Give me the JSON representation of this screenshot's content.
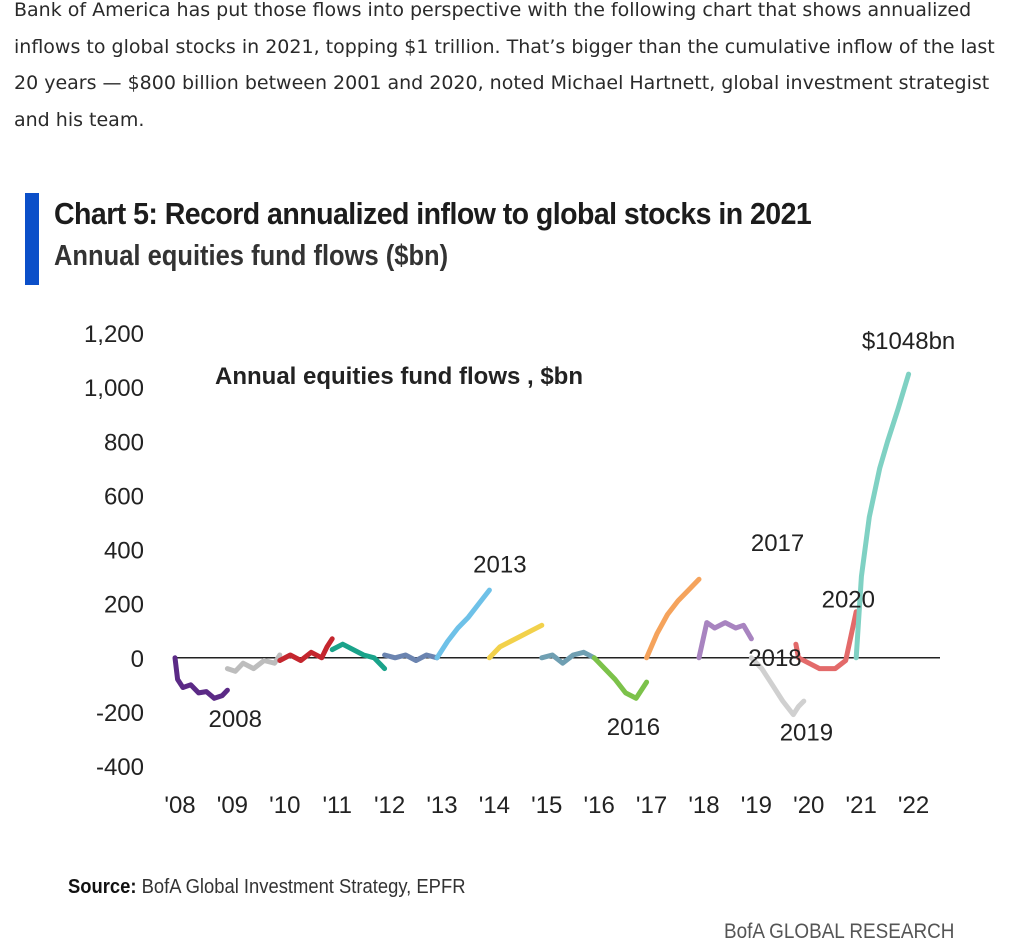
{
  "intro_text": "Bank of America has put those flows into perspective with the following chart that shows annualized inflows to global stocks in 2021, topping $1 trillion. That’s bigger than the cumulative inflow of the last 20 years — $800 billion between 2001 and 2020, noted Michael Hartnett, global investment strategist and his team.",
  "chart_header": {
    "title": "Chart 5: Record annualized inflow to global stocks in 2021",
    "subtitle": "Annual equities fund flows ($bn)",
    "accent_color": "#0b4fc9"
  },
  "source": {
    "label": "Source:",
    "text": "BofA Global Investment Strategy, EPFR"
  },
  "brand": "BofA GLOBAL RESEARCH",
  "chart_data": {
    "type": "line",
    "title": "Annual equities fund flows , $bn",
    "ylim": [
      -400,
      1200
    ],
    "yticks": [
      "1,200",
      "1,000",
      "800",
      "600",
      "400",
      "200",
      "0",
      "-200",
      "-400"
    ],
    "ytick_values": [
      1200,
      1000,
      800,
      600,
      400,
      200,
      0,
      -200,
      -400
    ],
    "xlim": [
      2008,
      2022.6
    ],
    "xticks": [
      "'08",
      "'09",
      "'10",
      "'11",
      "'12",
      "'13",
      "'14",
      "'15",
      "'16",
      "'17",
      "'18",
      "'19",
      "'20",
      "'21",
      "'22"
    ],
    "xtick_values": [
      2008,
      2009,
      2010,
      2011,
      2012,
      2013,
      2014,
      2015,
      2016,
      2017,
      2018,
      2019,
      2020,
      2021,
      2022
    ],
    "grid": false,
    "zero_line": true,
    "series": [
      {
        "color": "#5b2a86",
        "values": [
          [
            2008.0,
            0
          ],
          [
            2008.05,
            -80
          ],
          [
            2008.15,
            -110
          ],
          [
            2008.3,
            -100
          ],
          [
            2008.45,
            -130
          ],
          [
            2008.6,
            -125
          ],
          [
            2008.75,
            -150
          ],
          [
            2008.9,
            -140
          ],
          [
            2009.0,
            -120
          ]
        ]
      },
      {
        "color": "#bdbdbd",
        "values": [
          [
            2009.0,
            -40
          ],
          [
            2009.15,
            -50
          ],
          [
            2009.3,
            -20
          ],
          [
            2009.5,
            -40
          ],
          [
            2009.7,
            -10
          ],
          [
            2009.9,
            -20
          ],
          [
            2010.0,
            10
          ]
        ]
      },
      {
        "color": "#c4262e",
        "values": [
          [
            2010.0,
            -10
          ],
          [
            2010.2,
            10
          ],
          [
            2010.4,
            -10
          ],
          [
            2010.6,
            20
          ],
          [
            2010.8,
            0
          ],
          [
            2010.9,
            40
          ],
          [
            2011.0,
            70
          ]
        ]
      },
      {
        "color": "#1aa38a",
        "values": [
          [
            2011.0,
            30
          ],
          [
            2011.2,
            50
          ],
          [
            2011.4,
            30
          ],
          [
            2011.6,
            10
          ],
          [
            2011.8,
            0
          ],
          [
            2012.0,
            -40
          ]
        ]
      },
      {
        "color": "#6b84b0",
        "values": [
          [
            2012.0,
            10
          ],
          [
            2012.2,
            0
          ],
          [
            2012.4,
            10
          ],
          [
            2012.6,
            -10
          ],
          [
            2012.8,
            10
          ],
          [
            2013.0,
            0
          ]
        ]
      },
      {
        "color": "#6ec1e8",
        "values": [
          [
            2013.0,
            0
          ],
          [
            2013.2,
            60
          ],
          [
            2013.4,
            110
          ],
          [
            2013.6,
            150
          ],
          [
            2013.8,
            200
          ],
          [
            2014.0,
            250
          ]
        ]
      },
      {
        "color": "#f2d14b",
        "values": [
          [
            2014.0,
            0
          ],
          [
            2014.2,
            40
          ],
          [
            2014.4,
            60
          ],
          [
            2014.6,
            80
          ],
          [
            2014.8,
            100
          ],
          [
            2015.0,
            120
          ]
        ]
      },
      {
        "color": "#6f9fb2",
        "values": [
          [
            2015.0,
            0
          ],
          [
            2015.2,
            10
          ],
          [
            2015.4,
            -20
          ],
          [
            2015.6,
            10
          ],
          [
            2015.8,
            20
          ],
          [
            2016.0,
            0
          ]
        ]
      },
      {
        "color": "#7cc24a",
        "values": [
          [
            2016.0,
            0
          ],
          [
            2016.2,
            -40
          ],
          [
            2016.4,
            -80
          ],
          [
            2016.6,
            -130
          ],
          [
            2016.8,
            -150
          ],
          [
            2017.0,
            -90
          ]
        ]
      },
      {
        "color": "#f5a35c",
        "values": [
          [
            2017.0,
            0
          ],
          [
            2017.2,
            90
          ],
          [
            2017.4,
            160
          ],
          [
            2017.6,
            210
          ],
          [
            2017.8,
            250
          ],
          [
            2018.0,
            290
          ]
        ]
      },
      {
        "color": "#a884c0",
        "values": [
          [
            2018.0,
            0
          ],
          [
            2018.15,
            130
          ],
          [
            2018.3,
            110
          ],
          [
            2018.5,
            130
          ],
          [
            2018.7,
            110
          ],
          [
            2018.85,
            120
          ],
          [
            2019.0,
            70
          ]
        ]
      },
      {
        "color": "#d0d0d0",
        "values": [
          [
            2019.0,
            0
          ],
          [
            2019.2,
            -40
          ],
          [
            2019.4,
            -100
          ],
          [
            2019.6,
            -160
          ],
          [
            2019.8,
            -210
          ],
          [
            2019.9,
            -180
          ],
          [
            2020.0,
            -160
          ]
        ]
      },
      {
        "color": "#e36a6a",
        "values": [
          [
            2019.85,
            50
          ],
          [
            2019.9,
            0
          ],
          [
            2020.1,
            -20
          ],
          [
            2020.3,
            -40
          ],
          [
            2020.6,
            -40
          ],
          [
            2020.8,
            -10
          ],
          [
            2021.0,
            170
          ]
        ]
      },
      {
        "color": "#7fd1c3",
        "values": [
          [
            2021.0,
            0
          ],
          [
            2021.1,
            300
          ],
          [
            2021.25,
            520
          ],
          [
            2021.45,
            700
          ],
          [
            2021.6,
            800
          ],
          [
            2021.8,
            920
          ],
          [
            2022.0,
            1048
          ]
        ]
      }
    ],
    "annotations": [
      {
        "text": "$1048bn",
        "x": 2022.0,
        "y": 1140
      },
      {
        "text": "2008",
        "x": 2009.15,
        "y": -255
      },
      {
        "text": "2013",
        "x": 2014.2,
        "y": 315
      },
      {
        "text": "2016",
        "x": 2016.75,
        "y": -285
      },
      {
        "text": "2017",
        "x": 2019.5,
        "y": 395
      },
      {
        "text": "2020",
        "x": 2020.85,
        "y": 185
      },
      {
        "text": "2018",
        "x": 2019.45,
        "y": -30
      },
      {
        "text": "2019",
        "x": 2020.05,
        "y": -305
      }
    ]
  }
}
